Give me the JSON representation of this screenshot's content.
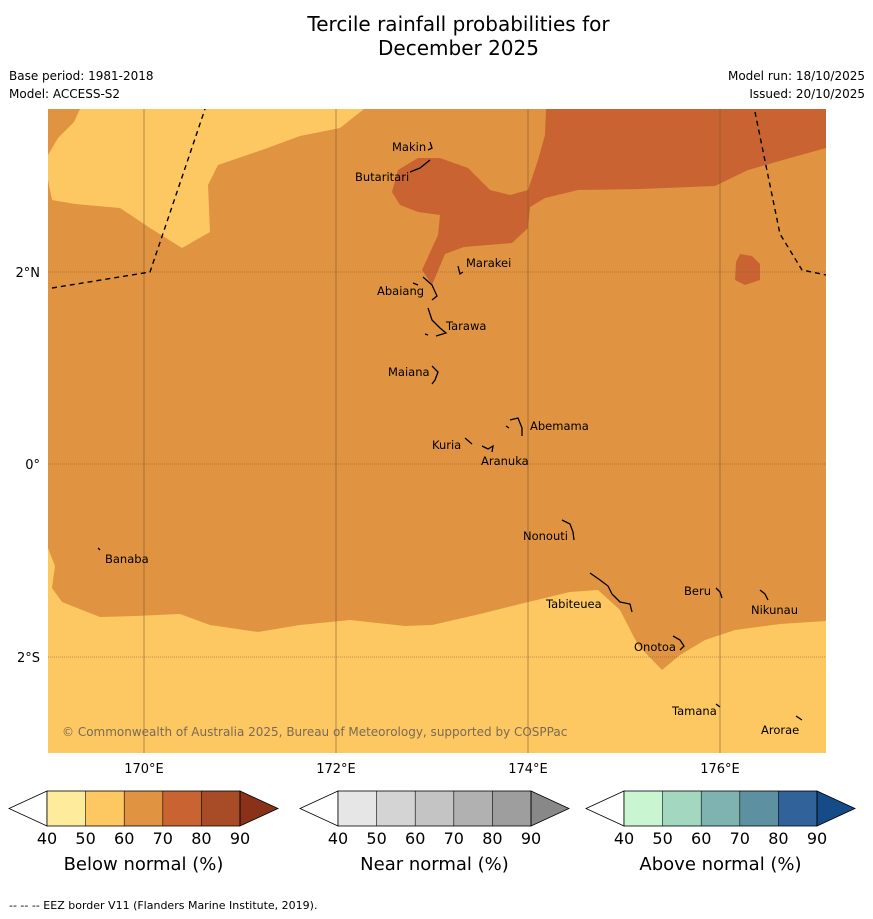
{
  "title_line1": "Tercile rainfall probabilities for",
  "title_line2": "December 2025",
  "meta": {
    "base_period": "Base period: 1981-2018",
    "model": "Model: ACCESS-S2",
    "model_run": "Model run: 18/10/2025",
    "issued": "Issued: 20/10/2025"
  },
  "map": {
    "longitude_labels": [
      "170°E",
      "172°E",
      "174°E",
      "176°E"
    ],
    "latitude_labels": [
      "2°N",
      "0°",
      "2°S"
    ],
    "copyright": "© Commonwealth of Australia 2025, Bureau of Meteorology, supported by COSPPac",
    "islands": [
      "Makin",
      "Butaritari",
      "Marakei",
      "Abaiang",
      "Tarawa",
      "Maiana",
      "Abemama",
      "Kuria",
      "Aranuka",
      "Nonouti",
      "Banaba",
      "Beru",
      "Nikunau",
      "Tabiteuea",
      "Onotoa",
      "Tamana",
      "Arorae"
    ],
    "category_colors": {
      "below_50_60": "#fdc862",
      "below_60_70": "#e09340",
      "below_70_80": "#c96432"
    }
  },
  "colorbars": [
    {
      "label": "Below normal (%)",
      "ticks": [
        "40",
        "50",
        "60",
        "70",
        "80",
        "90"
      ],
      "colors": [
        "#ffffff",
        "#feeb9b",
        "#fdc862",
        "#e09340",
        "#c96432",
        "#a84b27",
        "#8a3219"
      ]
    },
    {
      "label": "Near normal (%)",
      "ticks": [
        "40",
        "50",
        "60",
        "70",
        "80",
        "90"
      ],
      "colors": [
        "#ffffff",
        "#e6e6e6",
        "#d4d4d4",
        "#c4c4c4",
        "#b1b1b1",
        "#9e9e9e",
        "#888888"
      ]
    },
    {
      "label": "Above normal (%)",
      "ticks": [
        "40",
        "50",
        "60",
        "70",
        "80",
        "90"
      ],
      "colors": [
        "#ffffff",
        "#c9f5d0",
        "#a3d7bf",
        "#7fb3b0",
        "#5d91a1",
        "#31639a",
        "#154c88"
      ]
    }
  ],
  "footer": "-- -- -- EEZ border V11 (Flanders Marine Institute, 2019)."
}
